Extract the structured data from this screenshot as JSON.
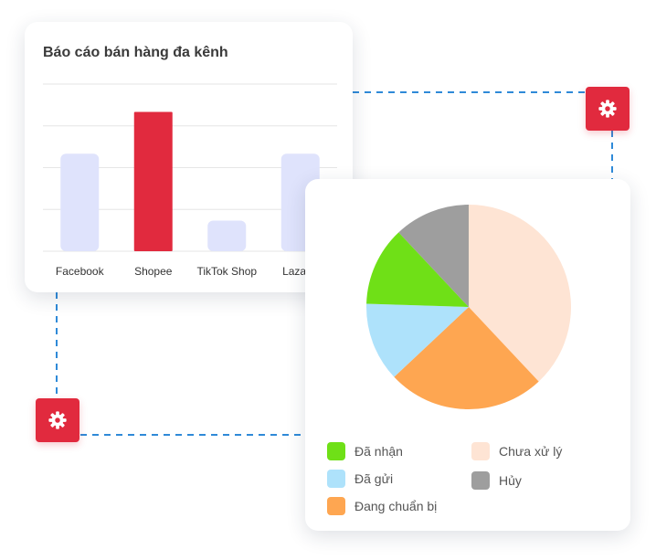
{
  "bar_card": {
    "title": "Báo cáo bán hàng đa kênh"
  },
  "pie_card": {
    "legend": [
      {
        "label": "Đã nhận",
        "color": "#6fe017"
      },
      {
        "label": "Chưa xử lý",
        "color": "#fee4d4"
      },
      {
        "label": "Đã gửi",
        "color": "#aee2fb"
      },
      {
        "label": "Hủy",
        "color": "#9e9e9e"
      },
      {
        "label": "Đang chuẩn bị",
        "color": "#fea651"
      }
    ]
  },
  "icons": {
    "top_gear": "gear-icon",
    "bottom_gear": "gear-icon"
  },
  "colors": {
    "accent": "#e12a3e",
    "bar_default": "#dfe3fc",
    "connector": "#2f8ad8"
  },
  "chart_data": [
    {
      "type": "bar",
      "title": "Báo cáo bán hàng đa kênh",
      "categories": [
        "Facebook",
        "Shopee",
        "TikTok Shop",
        "Lazada"
      ],
      "values": [
        70,
        100,
        22,
        70
      ],
      "highlight": "Shopee",
      "ylim": [
        0,
        120
      ],
      "grid": true,
      "y_tick_labels_shown": false
    },
    {
      "type": "pie",
      "slices": [
        {
          "label": "Chưa xử lý",
          "value": 38,
          "color": "#fee4d4"
        },
        {
          "label": "Đang chuẩn bị",
          "value": 25,
          "color": "#fea651"
        },
        {
          "label": "Đã gửi",
          "value": 12.5,
          "color": "#aee2fb"
        },
        {
          "label": "Đã nhận",
          "value": 12.5,
          "color": "#6fe017"
        },
        {
          "label": "Hủy",
          "value": 12,
          "color": "#9e9e9e"
        }
      ],
      "start_angle": "top",
      "direction": "clockwise"
    }
  ]
}
